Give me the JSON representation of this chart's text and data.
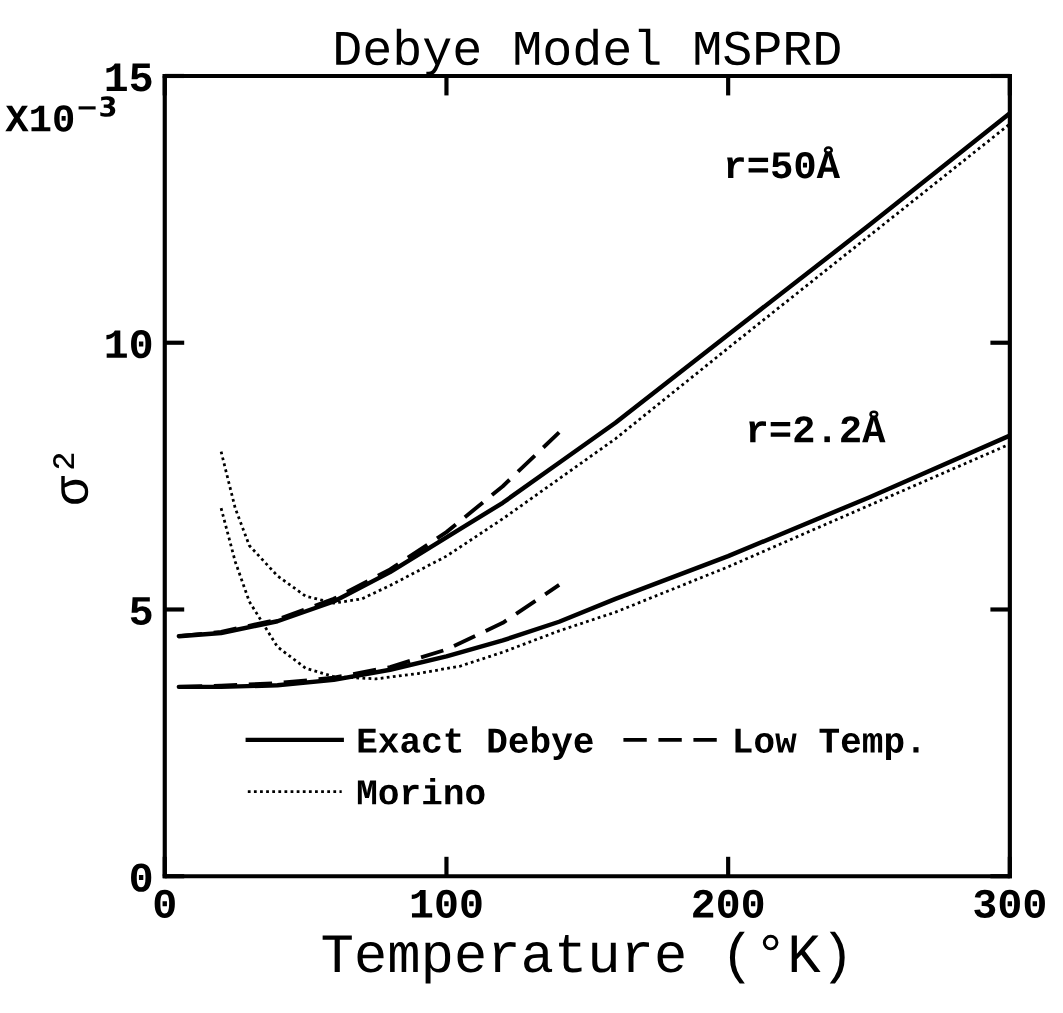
{
  "chart_data": {
    "type": "line",
    "title": "Debye Model MSPRD",
    "xlabel": "Temperature (°K)",
    "ylabel": "σ²",
    "xlim": [
      0,
      300
    ],
    "xticks": [
      0,
      100,
      200,
      300
    ],
    "ylim": [
      0,
      15
    ],
    "yticks": [
      0,
      5,
      10,
      15
    ],
    "grid": false,
    "legend": "bottom",
    "marker": "none",
    "annotations": [
      "X10$^{−3}$",
      "r=50Å",
      "r=2.2Å"
    ],
    "series": [
      {
        "name": "Exact Debye",
        "color": "#000000",
        "line_style": "solid",
        "x": [
          5,
          20,
          40,
          60,
          80,
          100,
          120,
          140,
          160,
          200,
          250,
          300
        ],
        "values": [
          4.5,
          4.56,
          4.78,
          5.15,
          5.7,
          6.35,
          7.0,
          7.75,
          8.5,
          10.15,
          12.2,
          14.3
        ]
      },
      {
        "color": "#000000",
        "line_style": "solid",
        "x": [
          5,
          20,
          40,
          60,
          80,
          100,
          120,
          140,
          160,
          200,
          250,
          300
        ],
        "values": [
          3.55,
          3.55,
          3.58,
          3.68,
          3.87,
          4.12,
          4.42,
          4.77,
          5.2,
          6.0,
          7.1,
          8.26
        ]
      },
      {
        "name": "Morino",
        "color": "#000000",
        "line_style": "dotted",
        "x": [
          20,
          25,
          30,
          40,
          50,
          60,
          70,
          80,
          100,
          120,
          140,
          160,
          200,
          250,
          300
        ],
        "values": [
          7.96,
          6.9,
          6.2,
          5.63,
          5.25,
          5.12,
          5.2,
          5.45,
          6.0,
          6.7,
          7.45,
          8.2,
          9.9,
          12.0,
          14.1
        ]
      },
      {
        "color": "#000000",
        "line_style": "dotted",
        "x": [
          20,
          25,
          30,
          40,
          50,
          60,
          75,
          90,
          105,
          120,
          140,
          160,
          200,
          250,
          300
        ],
        "values": [
          6.9,
          5.9,
          5.15,
          4.3,
          3.9,
          3.74,
          3.7,
          3.8,
          3.94,
          4.2,
          4.6,
          4.95,
          5.8,
          6.95,
          8.1
        ]
      },
      {
        "name": "Low Temp.",
        "color": "#000000",
        "line_style": "dashed",
        "x": [
          5,
          20,
          40,
          60,
          80,
          100,
          120,
          140
        ],
        "values": [
          4.5,
          4.58,
          4.81,
          5.2,
          5.75,
          6.45,
          7.31,
          8.32
        ]
      },
      {
        "color": "#000000",
        "line_style": "dashed",
        "x": [
          5,
          20,
          40,
          60,
          80,
          100,
          120,
          140
        ],
        "values": [
          3.55,
          3.57,
          3.62,
          3.72,
          3.92,
          4.25,
          4.75,
          5.46
        ]
      }
    ]
  }
}
